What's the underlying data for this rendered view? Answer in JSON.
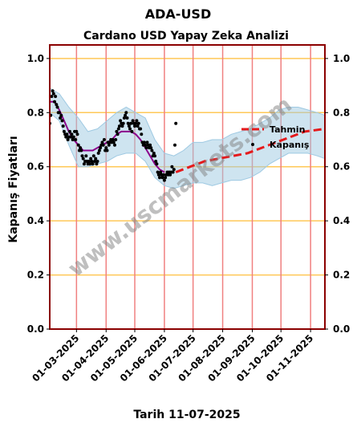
{
  "figure": {
    "title": "ADA-USD",
    "subtitle": "Cardano USD Yapay Zeka Analizi",
    "xlabel": "Tarih 11-07-2025",
    "ylabel": "Kapanış Fiyatları",
    "watermark": "www.uscmarkets.com"
  },
  "chart_data": {
    "type": "line",
    "ylim": [
      0,
      1.05
    ],
    "yticks": [
      "0.0",
      "0.2",
      "0.4",
      "0.6",
      "0.8",
      "1.0"
    ],
    "xlim": [
      "2025-02-01",
      "2025-11-16"
    ],
    "xticks": [
      "01-03-2025",
      "01-04-2025",
      "01-05-2025",
      "01-06-2025",
      "01-07-2025",
      "01-08-2025",
      "01-09-2025",
      "01-10-2025",
      "01-11-2025"
    ],
    "legend": {
      "placement": "center-right",
      "entries": [
        "Tahmin",
        "Kapanış"
      ]
    },
    "grid": {
      "horizontal": true,
      "vertical": true
    },
    "colors": {
      "frame": "#8b0000",
      "hgrid": "#ffc857",
      "vgrid": "#f08080",
      "band": "#9ec9e2",
      "trend": "#8b008b",
      "forecast": "#e41a1c",
      "closes": "#000000",
      "watermark": "#808080"
    },
    "series": [
      {
        "name": "Kapanış",
        "style": "points",
        "points": [
          [
            "2025-02-01",
            0.76
          ],
          [
            "2025-02-02",
            0.79
          ],
          [
            "2025-02-03",
            0.86
          ],
          [
            "2025-02-04",
            0.88
          ],
          [
            "2025-02-05",
            0.87
          ],
          [
            "2025-02-06",
            0.84
          ],
          [
            "2025-02-07",
            0.86
          ],
          [
            "2025-02-08",
            0.83
          ],
          [
            "2025-02-09",
            0.82
          ],
          [
            "2025-02-10",
            0.8
          ],
          [
            "2025-02-11",
            0.8
          ],
          [
            "2025-02-12",
            0.78
          ],
          [
            "2025-02-13",
            0.79
          ],
          [
            "2025-02-14",
            0.77
          ],
          [
            "2025-02-15",
            0.75
          ],
          [
            "2025-02-16",
            0.73
          ],
          [
            "2025-02-17",
            0.72
          ],
          [
            "2025-02-18",
            0.71
          ],
          [
            "2025-02-19",
            0.72
          ],
          [
            "2025-02-20",
            0.7
          ],
          [
            "2025-02-21",
            0.71
          ],
          [
            "2025-02-22",
            0.73
          ],
          [
            "2025-02-23",
            0.71
          ],
          [
            "2025-02-24",
            0.72
          ],
          [
            "2025-02-25",
            0.7
          ],
          [
            "2025-02-26",
            0.71
          ],
          [
            "2025-02-27",
            0.73
          ],
          [
            "2025-02-28",
            0.7
          ],
          [
            "2025-03-01",
            0.73
          ],
          [
            "2025-03-02",
            0.72
          ],
          [
            "2025-03-03",
            0.68
          ],
          [
            "2025-03-04",
            0.66
          ],
          [
            "2025-03-05",
            0.67
          ],
          [
            "2025-03-06",
            0.66
          ],
          [
            "2025-03-07",
            0.64
          ],
          [
            "2025-03-08",
            0.63
          ],
          [
            "2025-03-09",
            0.61
          ],
          [
            "2025-03-10",
            0.62
          ],
          [
            "2025-03-11",
            0.64
          ],
          [
            "2025-03-12",
            0.62
          ],
          [
            "2025-03-13",
            0.61
          ],
          [
            "2025-03-14",
            0.62
          ],
          [
            "2025-03-15",
            0.61
          ],
          [
            "2025-03-16",
            0.63
          ],
          [
            "2025-03-17",
            0.62
          ],
          [
            "2025-03-18",
            0.61
          ],
          [
            "2025-03-19",
            0.64
          ],
          [
            "2025-03-20",
            0.62
          ],
          [
            "2025-03-21",
            0.63
          ],
          [
            "2025-03-22",
            0.61
          ],
          [
            "2025-03-23",
            0.62
          ],
          [
            "2025-03-24",
            0.65
          ],
          [
            "2025-03-25",
            0.66
          ],
          [
            "2025-03-26",
            0.67
          ],
          [
            "2025-03-27",
            0.68
          ],
          [
            "2025-03-28",
            0.69
          ],
          [
            "2025-03-29",
            0.68
          ],
          [
            "2025-03-30",
            0.7
          ],
          [
            "2025-03-31",
            0.66
          ],
          [
            "2025-04-01",
            0.67
          ],
          [
            "2025-04-02",
            0.66
          ],
          [
            "2025-04-03",
            0.69
          ],
          [
            "2025-04-04",
            0.68
          ],
          [
            "2025-04-05",
            0.69
          ],
          [
            "2025-04-06",
            0.7
          ],
          [
            "2025-04-07",
            0.69
          ],
          [
            "2025-04-08",
            0.7
          ],
          [
            "2025-04-09",
            0.69
          ],
          [
            "2025-04-10",
            0.68
          ],
          [
            "2025-04-11",
            0.7
          ],
          [
            "2025-04-12",
            0.73
          ],
          [
            "2025-04-13",
            0.72
          ],
          [
            "2025-04-14",
            0.74
          ],
          [
            "2025-04-15",
            0.75
          ],
          [
            "2025-04-16",
            0.77
          ],
          [
            "2025-04-17",
            0.76
          ],
          [
            "2025-04-18",
            0.75
          ],
          [
            "2025-04-19",
            0.76
          ],
          [
            "2025-04-20",
            0.78
          ],
          [
            "2025-04-21",
            0.79
          ],
          [
            "2025-04-22",
            0.8
          ],
          [
            "2025-04-23",
            0.78
          ],
          [
            "2025-04-24",
            0.76
          ],
          [
            "2025-04-25",
            0.75
          ],
          [
            "2025-04-26",
            0.74
          ],
          [
            "2025-04-27",
            0.76
          ],
          [
            "2025-04-28",
            0.73
          ],
          [
            "2025-04-29",
            0.77
          ],
          [
            "2025-04-30",
            0.76
          ],
          [
            "2025-05-01",
            0.75
          ],
          [
            "2025-05-02",
            0.76
          ],
          [
            "2025-05-03",
            0.77
          ],
          [
            "2025-05-04",
            0.75
          ],
          [
            "2025-05-05",
            0.76
          ],
          [
            "2025-05-06",
            0.74
          ],
          [
            "2025-05-07",
            0.74
          ],
          [
            "2025-05-08",
            0.72
          ],
          [
            "2025-05-09",
            0.69
          ],
          [
            "2025-05-10",
            0.68
          ],
          [
            "2025-05-11",
            0.69
          ],
          [
            "2025-05-12",
            0.68
          ],
          [
            "2025-05-13",
            0.67
          ],
          [
            "2025-05-14",
            0.69
          ],
          [
            "2025-05-15",
            0.68
          ],
          [
            "2025-05-16",
            0.67
          ],
          [
            "2025-05-17",
            0.68
          ],
          [
            "2025-05-18",
            0.67
          ],
          [
            "2025-05-19",
            0.66
          ],
          [
            "2025-05-20",
            0.64
          ],
          [
            "2025-05-21",
            0.65
          ],
          [
            "2025-05-22",
            0.64
          ],
          [
            "2025-05-23",
            0.62
          ],
          [
            "2025-05-24",
            0.61
          ],
          [
            "2025-05-25",
            0.58
          ],
          [
            "2025-05-26",
            0.57
          ],
          [
            "2025-05-27",
            0.56
          ],
          [
            "2025-05-28",
            0.58
          ],
          [
            "2025-05-29",
            0.57
          ],
          [
            "2025-05-30",
            0.56
          ],
          [
            "2025-05-31",
            0.57
          ],
          [
            "2025-06-01",
            0.55
          ],
          [
            "2025-06-02",
            0.56
          ],
          [
            "2025-06-03",
            0.57
          ],
          [
            "2025-06-04",
            0.58
          ],
          [
            "2025-06-05",
            0.57
          ],
          [
            "2025-06-06",
            0.58
          ],
          [
            "2025-06-07",
            0.57
          ],
          [
            "2025-06-08",
            0.58
          ],
          [
            "2025-06-09",
            0.6
          ],
          [
            "2025-06-10",
            0.58
          ],
          [
            "2025-06-11",
            0.59
          ],
          [
            "2025-06-12",
            0.68
          ],
          [
            "2025-06-13",
            0.76
          ]
        ]
      },
      {
        "name": "",
        "style": "line",
        "points": [
          [
            "2025-02-01",
            0.84
          ],
          [
            "2025-02-06",
            0.84
          ],
          [
            "2025-02-11",
            0.81
          ],
          [
            "2025-02-16",
            0.77
          ],
          [
            "2025-02-21",
            0.73
          ],
          [
            "2025-02-26",
            0.7
          ],
          [
            "2025-03-03",
            0.68
          ],
          [
            "2025-03-08",
            0.66
          ],
          [
            "2025-03-13",
            0.66
          ],
          [
            "2025-03-18",
            0.66
          ],
          [
            "2025-03-23",
            0.67
          ],
          [
            "2025-03-28",
            0.68
          ],
          [
            "2025-04-02",
            0.69
          ],
          [
            "2025-04-07",
            0.7
          ],
          [
            "2025-04-12",
            0.72
          ],
          [
            "2025-04-17",
            0.73
          ],
          [
            "2025-04-22",
            0.73
          ],
          [
            "2025-04-27",
            0.73
          ],
          [
            "2025-05-02",
            0.72
          ],
          [
            "2025-05-07",
            0.7
          ],
          [
            "2025-05-12",
            0.67
          ],
          [
            "2025-05-17",
            0.64
          ],
          [
            "2025-05-22",
            0.61
          ],
          [
            "2025-05-27",
            0.59
          ],
          [
            "2025-06-01",
            0.58
          ]
        ]
      },
      {
        "name": "Tahmin",
        "style": "dashed-line",
        "points": [
          [
            "2025-06-13",
            0.58
          ],
          [
            "2025-06-28",
            0.6
          ],
          [
            "2025-07-13",
            0.62
          ],
          [
            "2025-07-28",
            0.63
          ],
          [
            "2025-08-12",
            0.64
          ],
          [
            "2025-08-27",
            0.65
          ],
          [
            "2025-09-11",
            0.67
          ],
          [
            "2025-09-26",
            0.69
          ],
          [
            "2025-10-11",
            0.71
          ],
          [
            "2025-10-26",
            0.73
          ],
          [
            "2025-11-16",
            0.74
          ]
        ]
      },
      {
        "name": "",
        "style": "band",
        "points": [
          [
            "2025-02-01",
            0.8,
            0.89
          ],
          [
            "2025-02-11",
            0.77,
            0.87
          ],
          [
            "2025-02-21",
            0.68,
            0.82
          ],
          [
            "2025-03-03",
            0.6,
            0.78
          ],
          [
            "2025-03-13",
            0.6,
            0.73
          ],
          [
            "2025-03-23",
            0.61,
            0.74
          ],
          [
            "2025-04-02",
            0.62,
            0.77
          ],
          [
            "2025-04-12",
            0.64,
            0.8
          ],
          [
            "2025-04-22",
            0.65,
            0.82
          ],
          [
            "2025-05-02",
            0.65,
            0.8
          ],
          [
            "2025-05-12",
            0.62,
            0.78
          ],
          [
            "2025-05-22",
            0.56,
            0.7
          ],
          [
            "2025-06-01",
            0.53,
            0.65
          ],
          [
            "2025-06-11",
            0.52,
            0.64
          ],
          [
            "2025-06-21",
            0.53,
            0.66
          ],
          [
            "2025-07-01",
            0.54,
            0.69
          ],
          [
            "2025-07-11",
            0.54,
            0.69
          ],
          [
            "2025-07-21",
            0.53,
            0.7
          ],
          [
            "2025-07-31",
            0.54,
            0.7
          ],
          [
            "2025-08-10",
            0.55,
            0.72
          ],
          [
            "2025-08-20",
            0.55,
            0.73
          ],
          [
            "2025-08-30",
            0.56,
            0.74
          ],
          [
            "2025-09-09",
            0.58,
            0.76
          ],
          [
            "2025-09-19",
            0.61,
            0.78
          ],
          [
            "2025-09-29",
            0.63,
            0.81
          ],
          [
            "2025-10-09",
            0.65,
            0.82
          ],
          [
            "2025-10-19",
            0.65,
            0.82
          ],
          [
            "2025-10-29",
            0.65,
            0.81
          ],
          [
            "2025-11-08",
            0.64,
            0.8
          ],
          [
            "2025-11-16",
            0.63,
            0.79
          ]
        ]
      }
    ]
  }
}
